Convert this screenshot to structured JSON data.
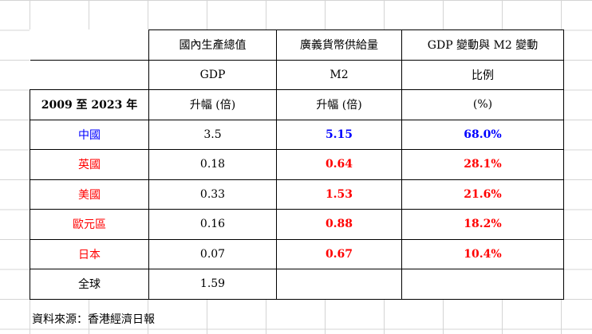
{
  "header": {
    "row1": [
      "國內生產總值",
      "廣義貨幣供給量",
      "GDP 變動與 M2 變動"
    ],
    "row2": [
      "GDP",
      "M2",
      "比例"
    ],
    "row3": [
      "2009 至 2023 年",
      "升幅 (倍)",
      "升幅 (倍)",
      "(%)"
    ]
  },
  "rows": [
    {
      "region": "中國",
      "gdp": "3.5",
      "m2": "5.15",
      "ratio": "68.0%"
    },
    {
      "region": "英國",
      "gdp": "0.18",
      "m2": "0.64",
      "ratio": "28.1%"
    },
    {
      "region": "美國",
      "gdp": "0.33",
      "m2": "1.53",
      "ratio": "21.6%"
    },
    {
      "region": "歐元區",
      "gdp": "0.16",
      "m2": "0.88",
      "ratio": "18.2%"
    },
    {
      "region": "日本",
      "gdp": "0.07",
      "m2": "0.67",
      "ratio": "10.4%"
    },
    {
      "region": "全球",
      "gdp": "1.59",
      "m2": "",
      "ratio": ""
    }
  ],
  "colors": {
    "china": "#0000ff",
    "highlight": "#ff0000",
    "gridline": "#d4d4d4"
  },
  "source": "資料來源：香港經濟日報"
}
